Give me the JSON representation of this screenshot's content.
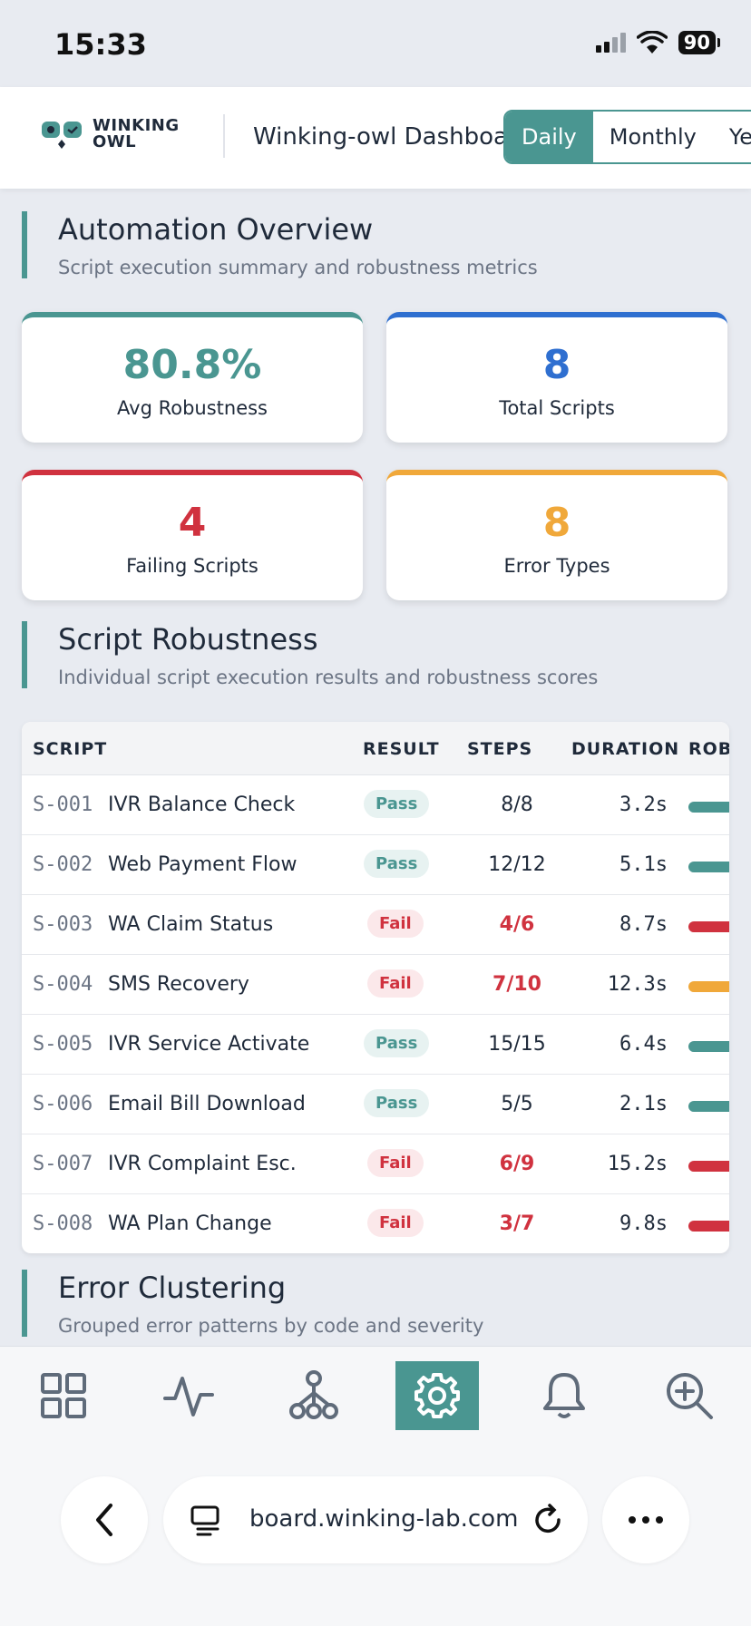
{
  "status_bar": {
    "time": "15:33",
    "battery": "90"
  },
  "header": {
    "logo_line1": "WINKING",
    "logo_line2": "OWL",
    "title": "Winking-owl Dashboard",
    "tabs": [
      "Daily",
      "Monthly",
      "Yearly"
    ],
    "active_tab": "Daily"
  },
  "overview": {
    "title": "Automation Overview",
    "subtitle": "Script execution summary and robustness metrics",
    "kpis": [
      {
        "value": "80.8%",
        "label": "Avg Robustness",
        "color": "#4a9691"
      },
      {
        "value": "8",
        "label": "Total Scripts",
        "color": "#2f6fd0"
      },
      {
        "value": "4",
        "label": "Failing Scripts",
        "color": "#d0323f"
      },
      {
        "value": "8",
        "label": "Error Types",
        "color": "#f0a83a"
      }
    ]
  },
  "robustness": {
    "title": "Script Robustness",
    "subtitle": "Individual script execution results and robustness scores",
    "columns": [
      "SCRIPT",
      "RESULT",
      "STEPS",
      "DURATION",
      "ROBUSTNESS"
    ],
    "rows": [
      {
        "id": "S-001",
        "name": "IVR Balance Check",
        "result": "Pass",
        "steps": "8/8",
        "duration": "3.2s",
        "bar_color": "#4a9691"
      },
      {
        "id": "S-002",
        "name": "Web Payment Flow",
        "result": "Pass",
        "steps": "12/12",
        "duration": "5.1s",
        "bar_color": "#4a9691"
      },
      {
        "id": "S-003",
        "name": "WA Claim Status",
        "result": "Fail",
        "steps": "4/6",
        "duration": "8.7s",
        "bar_color": "#d0323f"
      },
      {
        "id": "S-004",
        "name": "SMS Recovery",
        "result": "Fail",
        "steps": "7/10",
        "duration": "12.3s",
        "bar_color": "#f0a83a"
      },
      {
        "id": "S-005",
        "name": "IVR Service Activate",
        "result": "Pass",
        "steps": "15/15",
        "duration": "6.4s",
        "bar_color": "#4a9691"
      },
      {
        "id": "S-006",
        "name": "Email Bill Download",
        "result": "Pass",
        "steps": "5/5",
        "duration": "2.1s",
        "bar_color": "#4a9691"
      },
      {
        "id": "S-007",
        "name": "IVR Complaint Esc.",
        "result": "Fail",
        "steps": "6/9",
        "duration": "15.2s",
        "bar_color": "#d0323f"
      },
      {
        "id": "S-008",
        "name": "WA Plan Change",
        "result": "Fail",
        "steps": "3/7",
        "duration": "9.8s",
        "bar_color": "#d0323f"
      }
    ]
  },
  "clustering": {
    "title": "Error Clustering",
    "subtitle": "Grouped error patterns by code and severity"
  },
  "bottom_nav": {
    "items": [
      "grid-icon",
      "activity-icon",
      "workflow-icon",
      "settings-icon",
      "bell-icon",
      "zoom-in-icon"
    ],
    "active": "settings-icon"
  },
  "browser": {
    "url": "board.winking-lab.com"
  },
  "colors": {
    "accent": "#4a9691",
    "blue": "#2f6fd0",
    "red": "#d0323f",
    "amber": "#f0a83a"
  }
}
